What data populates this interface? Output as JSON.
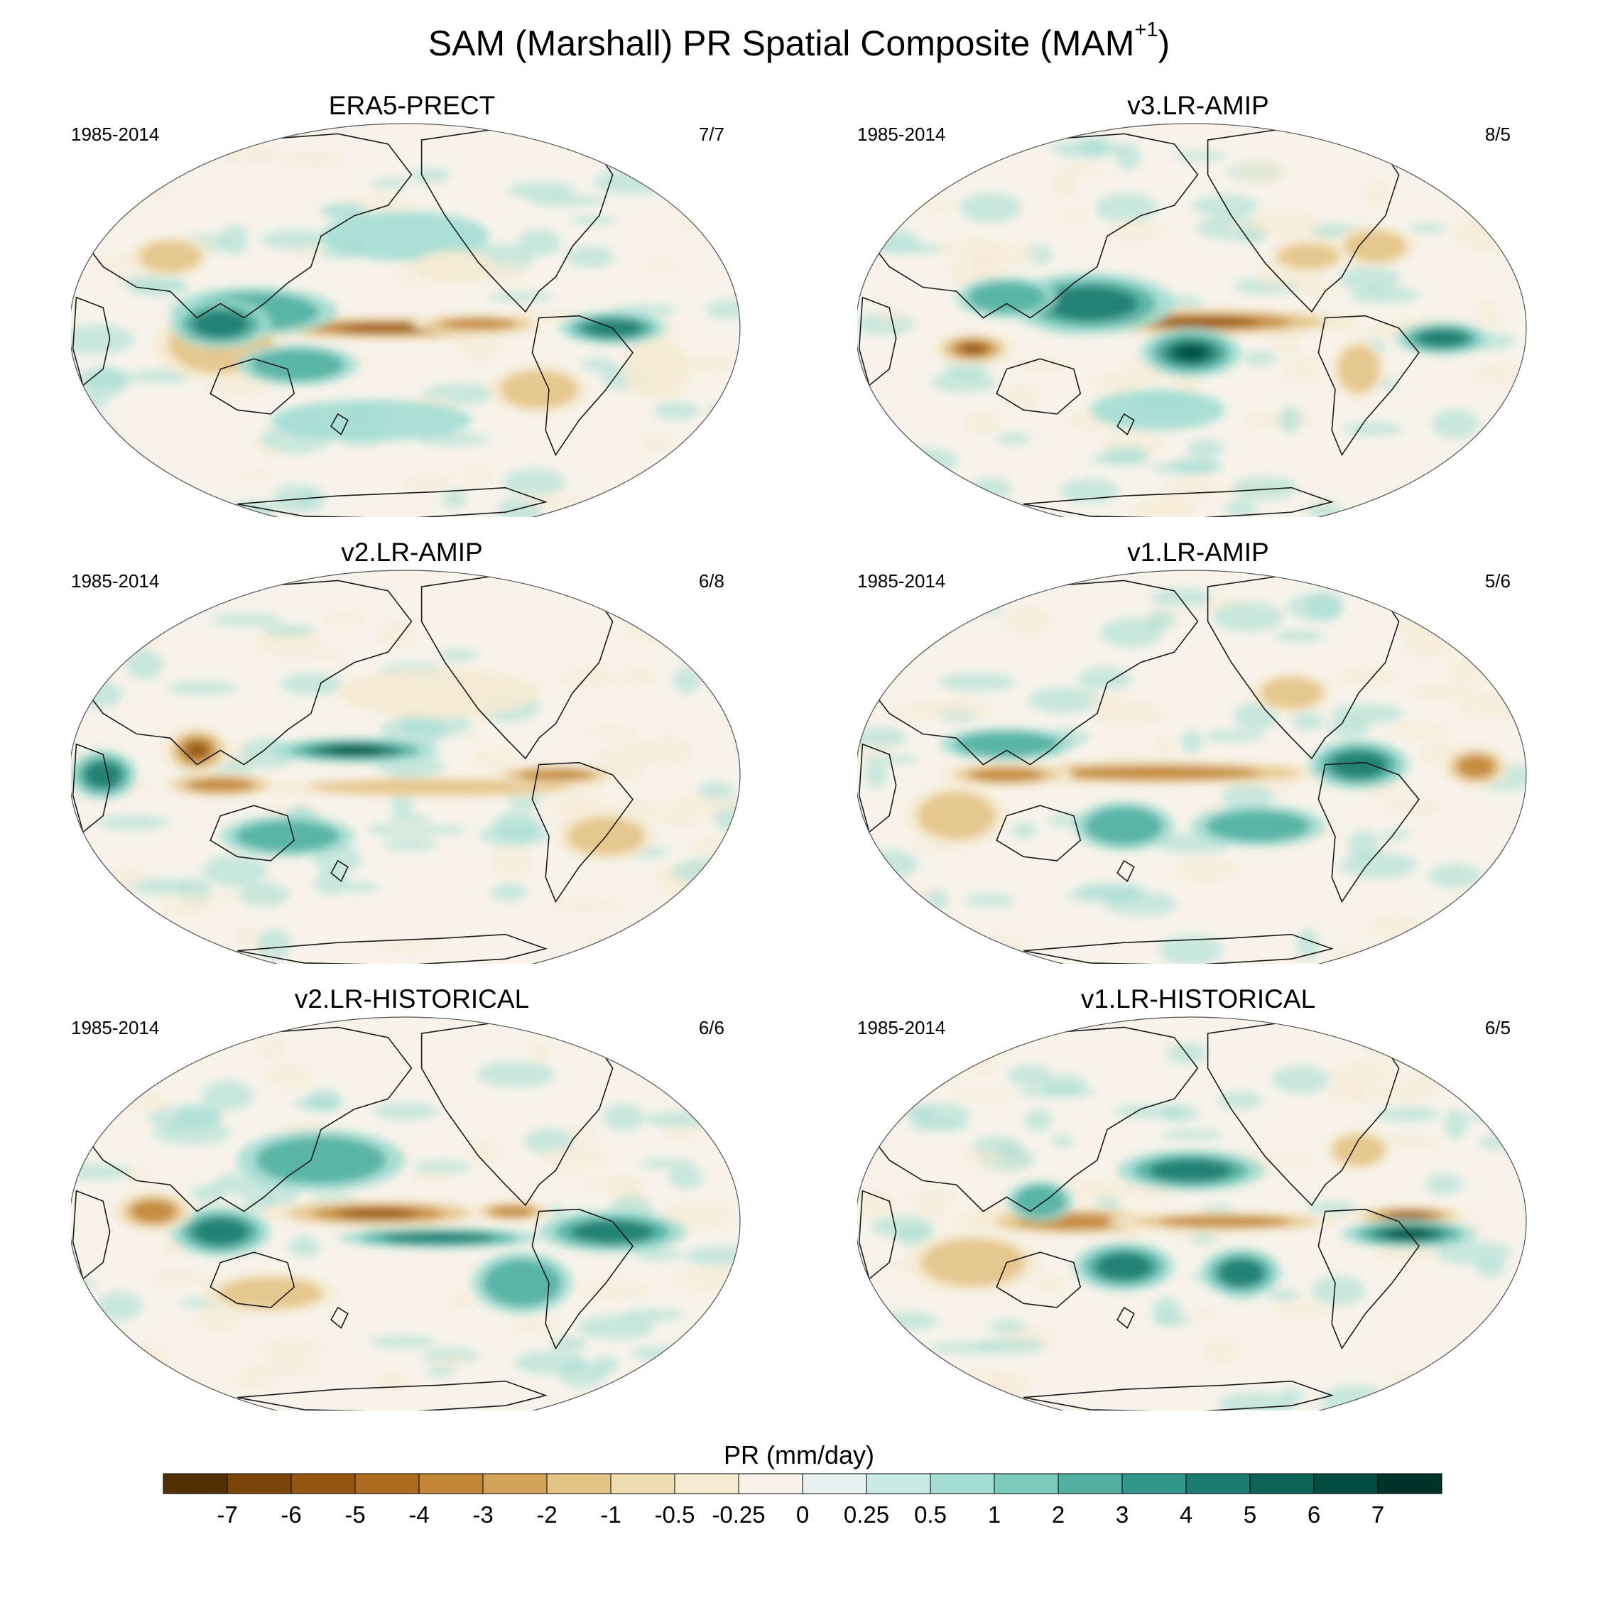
{
  "figure": {
    "title_main": "SAM (Marshall) PR Spatial Composite (MAM",
    "title_sup": "+1",
    "title_end": ")"
  },
  "panels": [
    {
      "title": "ERA5-PRECT",
      "period": "1985-2014",
      "ratio": "7/7",
      "pattern": "era5"
    },
    {
      "title": "v3.LR-AMIP",
      "period": "1985-2014",
      "ratio": "8/5",
      "pattern": "v3amip"
    },
    {
      "title": "v2.LR-AMIP",
      "period": "1985-2014",
      "ratio": "6/8",
      "pattern": "v2amip"
    },
    {
      "title": "v1.LR-AMIP",
      "period": "1985-2014",
      "ratio": "5/6",
      "pattern": "v1amip"
    },
    {
      "title": "v2.LR-HISTORICAL",
      "period": "1985-2014",
      "ratio": "6/6",
      "pattern": "v2hist"
    },
    {
      "title": "v1.LR-HISTORICAL",
      "period": "1985-2014",
      "ratio": "6/5",
      "pattern": "v1hist"
    }
  ],
  "colorbar": {
    "label": "PR (mm/day)",
    "ticks": [
      "-7",
      "-6",
      "-5",
      "-4",
      "-3",
      "-2",
      "-1",
      "-0.5",
      "-0.25",
      "0",
      "0.25",
      "0.5",
      "1",
      "2",
      "3",
      "4",
      "5",
      "6",
      "7"
    ],
    "colors": [
      "#543005",
      "#7a4409",
      "#94560f",
      "#ad6b1f",
      "#c28636",
      "#d4a35a",
      "#e4c386",
      "#efdcb0",
      "#f5ead2",
      "#f7f3ea",
      "#e8f3f1",
      "#c9ebe4",
      "#a3ddd3",
      "#7dcbbd",
      "#52b0a2",
      "#33968a",
      "#1d7c70",
      "#0d6358",
      "#004c40",
      "#003328"
    ],
    "neg_colors": [
      "#94560f",
      "#c28636",
      "#e4c386",
      "#f5ead2"
    ],
    "pos_colors": [
      "#a3ddd3",
      "#52b0a2",
      "#1d7c70",
      "#004c40"
    ],
    "ocean_color": "#f7f3ea",
    "coast_color": "#1a1a1a"
  }
}
